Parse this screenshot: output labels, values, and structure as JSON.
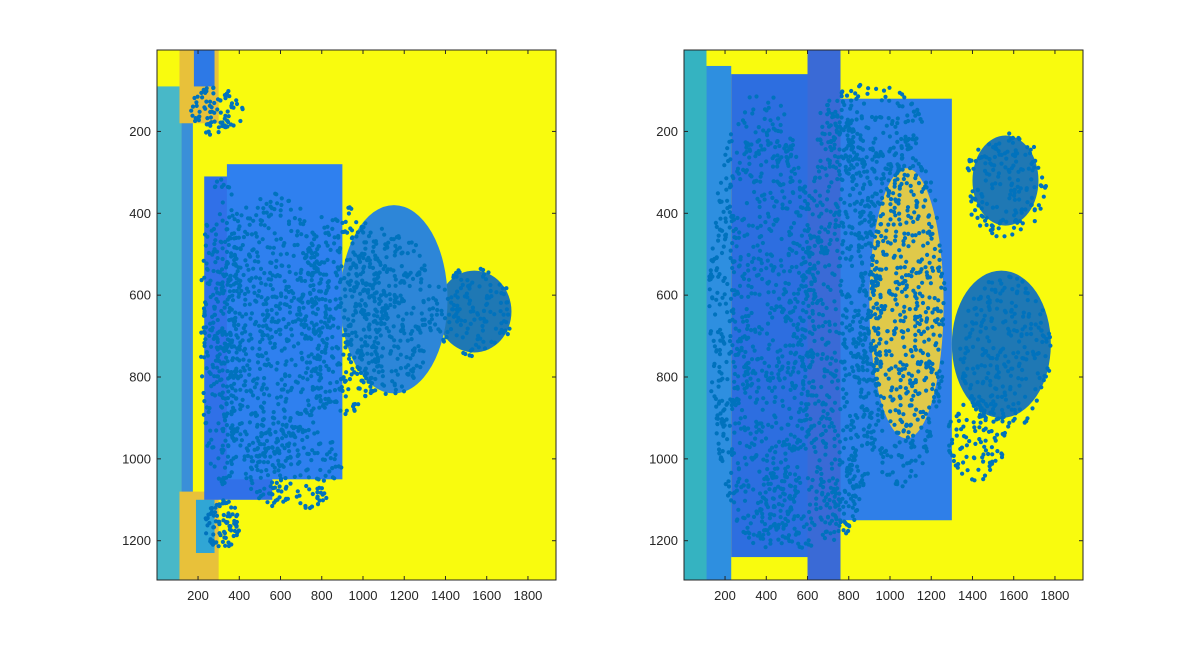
{
  "figure": {
    "background": "#ffffff"
  },
  "chart_data": [
    {
      "type": "heatmap",
      "panel": "left",
      "title": "",
      "xlabel": "",
      "ylabel": "",
      "xlim": [
        1,
        1936
      ],
      "ylim": [
        1,
        1296
      ],
      "y_reversed": true,
      "x_ticks": [
        200,
        400,
        600,
        800,
        1000,
        1200,
        1400,
        1600,
        1800
      ],
      "y_ticks": [
        200,
        400,
        600,
        800,
        1000,
        1200
      ],
      "x_tick_labels": [
        "200",
        "400",
        "600",
        "800",
        "1000",
        "1200",
        "1400",
        "1600",
        "1800"
      ],
      "y_tick_labels": [
        "200",
        "400",
        "600",
        "800",
        "1000",
        "1200"
      ],
      "colormap": "parula",
      "background_color": "#f9fb0e",
      "overlay": {
        "type": "scatter",
        "color": "#0072bd",
        "marker": "filled circle"
      },
      "regions": [
        {
          "shape": "rect",
          "x0": 1,
          "x1": 120,
          "y0": 90,
          "y1": 1296,
          "fill": "#48b8c8"
        },
        {
          "shape": "rect",
          "x0": 120,
          "x1": 175,
          "y0": 150,
          "y1": 1296,
          "fill": "#3a8fd8"
        },
        {
          "shape": "rect",
          "x0": 110,
          "x1": 300,
          "y0": 1,
          "y1": 180,
          "fill": "#e8c13a"
        },
        {
          "shape": "rect",
          "x0": 110,
          "x1": 300,
          "y0": 1080,
          "y1": 1296,
          "fill": "#e8c13a"
        },
        {
          "shape": "rect",
          "x0": 180,
          "x1": 280,
          "y0": 1,
          "y1": 90,
          "fill": "#2d79e6"
        },
        {
          "shape": "rect",
          "x0": 190,
          "x1": 280,
          "y0": 1100,
          "y1": 1230,
          "fill": "#30a6d5"
        },
        {
          "shape": "rect",
          "x0": 230,
          "x1": 560,
          "y0": 310,
          "y1": 1100,
          "fill": "#3070e8"
        },
        {
          "shape": "rect",
          "x0": 340,
          "x1": 900,
          "y0": 280,
          "y1": 1050,
          "fill": "#2f80ef"
        },
        {
          "shape": "ellipse",
          "cx": 1540,
          "cy": 640,
          "rx": 180,
          "ry": 100,
          "fill": "#1f78b4"
        },
        {
          "shape": "ellipse",
          "cx": 1150,
          "cy": 610,
          "rx": 260,
          "ry": 230,
          "fill": "#2d86d8"
        }
      ],
      "dense_clusters": [
        {
          "cx": 560,
          "cy": 690,
          "rx": 300,
          "ry": 340
        },
        {
          "cx": 320,
          "cy": 690,
          "rx": 110,
          "ry": 380
        },
        {
          "cx": 900,
          "cy": 640,
          "rx": 220,
          "ry": 260
        },
        {
          "cx": 1120,
          "cy": 640,
          "rx": 220,
          "ry": 210
        },
        {
          "cx": 1530,
          "cy": 640,
          "rx": 200,
          "ry": 110
        },
        {
          "cx": 660,
          "cy": 1020,
          "rx": 240,
          "ry": 110
        },
        {
          "cx": 290,
          "cy": 150,
          "rx": 130,
          "ry": 60
        },
        {
          "cx": 320,
          "cy": 1160,
          "rx": 90,
          "ry": 60
        }
      ]
    },
    {
      "type": "heatmap",
      "panel": "right",
      "title": "",
      "xlabel": "",
      "ylabel": "",
      "xlim": [
        1,
        1936
      ],
      "ylim": [
        1,
        1296
      ],
      "y_reversed": true,
      "x_ticks": [
        200,
        400,
        600,
        800,
        1000,
        1200,
        1400,
        1600,
        1800
      ],
      "y_ticks": [
        200,
        400,
        600,
        800,
        1000,
        1200
      ],
      "x_tick_labels": [
        "200",
        "400",
        "600",
        "800",
        "1000",
        "1200",
        "1400",
        "1600",
        "1800"
      ],
      "y_tick_labels": [
        "200",
        "400",
        "600",
        "800",
        "1000",
        "1200"
      ],
      "colormap": "parula",
      "background_color": "#f9fb0e",
      "overlay": {
        "type": "scatter",
        "color": "#0072bd",
        "marker": "filled circle"
      },
      "regions": [
        {
          "shape": "rect",
          "x0": 1,
          "x1": 110,
          "y0": 1,
          "y1": 1296,
          "fill": "#35b3c1"
        },
        {
          "shape": "rect",
          "x0": 110,
          "x1": 230,
          "y0": 40,
          "y1": 1296,
          "fill": "#2e8fe0"
        },
        {
          "shape": "rect",
          "x0": 230,
          "x1": 650,
          "y0": 60,
          "y1": 1240,
          "fill": "#2d6ee0"
        },
        {
          "shape": "rect",
          "x0": 650,
          "x1": 1300,
          "y0": 120,
          "y1": 1150,
          "fill": "#2f7fe8"
        },
        {
          "shape": "rect",
          "x0": 600,
          "x1": 760,
          "y0": 1,
          "y1": 1296,
          "fill": "#3a6ad6"
        },
        {
          "shape": "ellipse",
          "cx": 1540,
          "cy": 720,
          "rx": 240,
          "ry": 180,
          "fill": "#1f78b4"
        },
        {
          "shape": "ellipse",
          "cx": 1560,
          "cy": 320,
          "rx": 160,
          "ry": 110,
          "fill": "#1f78b4"
        },
        {
          "shape": "ellipse",
          "cx": 1080,
          "cy": 620,
          "rx": 180,
          "ry": 330,
          "fill": "#e0c94a"
        }
      ],
      "dense_clusters": [
        {
          "cx": 380,
          "cy": 660,
          "rx": 260,
          "ry": 560
        },
        {
          "cx": 760,
          "cy": 660,
          "rx": 200,
          "ry": 520
        },
        {
          "cx": 1050,
          "cy": 640,
          "rx": 220,
          "ry": 430
        },
        {
          "cx": 1560,
          "cy": 330,
          "rx": 200,
          "ry": 130
        },
        {
          "cx": 1560,
          "cy": 740,
          "rx": 220,
          "ry": 190
        },
        {
          "cx": 1420,
          "cy": 950,
          "rx": 140,
          "ry": 110
        },
        {
          "cx": 900,
          "cy": 200,
          "rx": 260,
          "ry": 120
        },
        {
          "cx": 600,
          "cy": 1130,
          "rx": 240,
          "ry": 90
        }
      ]
    }
  ]
}
